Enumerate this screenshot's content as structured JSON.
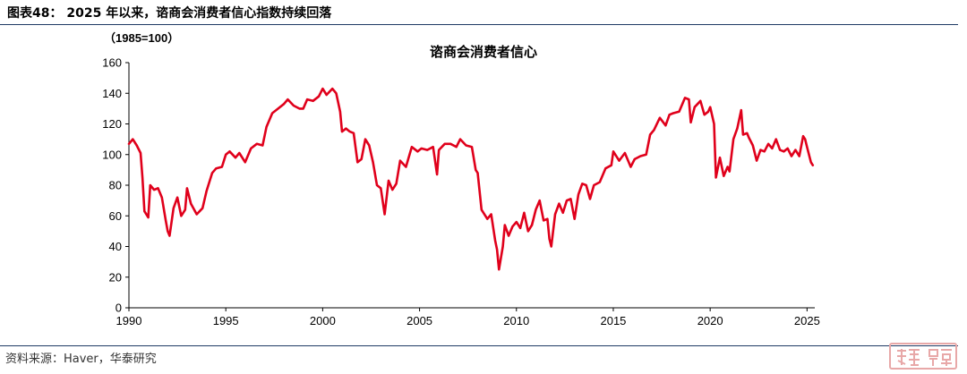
{
  "header": {
    "figure_title": "图表48：  2025 年以来，谘商会消费者信心指数持续回落"
  },
  "footer": {
    "source": "资料来源：Haver，华泰研究"
  },
  "colors": {
    "line": "#e0001b",
    "rule": "#1f3a64",
    "seal": "#e8a8a8"
  },
  "chart_data": {
    "type": "line",
    "title": "谘商会消费者信心",
    "unit_label": "（1985=100）",
    "ylim": [
      0,
      160
    ],
    "yticks": [
      0,
      20,
      40,
      60,
      80,
      100,
      120,
      140,
      160
    ],
    "xlim": [
      1990,
      2025.4
    ],
    "xticks": [
      1990,
      1995,
      2000,
      2005,
      2010,
      2015,
      2020,
      2025
    ],
    "grid": false,
    "series": [
      {
        "values": [
          [
            1990.0,
            107
          ],
          [
            1990.2,
            110
          ],
          [
            1990.4,
            106
          ],
          [
            1990.6,
            101
          ],
          [
            1990.7,
            85
          ],
          [
            1990.8,
            63
          ],
          [
            1991.0,
            59
          ],
          [
            1991.1,
            80
          ],
          [
            1991.3,
            77
          ],
          [
            1991.5,
            78
          ],
          [
            1991.7,
            72
          ],
          [
            1991.9,
            57
          ],
          [
            1992.0,
            50
          ],
          [
            1992.1,
            47
          ],
          [
            1992.3,
            65
          ],
          [
            1992.5,
            72
          ],
          [
            1992.7,
            60
          ],
          [
            1992.9,
            64
          ],
          [
            1993.0,
            78
          ],
          [
            1993.2,
            68
          ],
          [
            1993.5,
            61
          ],
          [
            1993.8,
            65
          ],
          [
            1994.0,
            76
          ],
          [
            1994.3,
            88
          ],
          [
            1994.5,
            91
          ],
          [
            1994.8,
            92
          ],
          [
            1995.0,
            100
          ],
          [
            1995.2,
            102
          ],
          [
            1995.5,
            98
          ],
          [
            1995.7,
            101
          ],
          [
            1996.0,
            95
          ],
          [
            1996.3,
            104
          ],
          [
            1996.6,
            107
          ],
          [
            1996.9,
            106
          ],
          [
            1997.1,
            118
          ],
          [
            1997.4,
            127
          ],
          [
            1997.7,
            130
          ],
          [
            1998.0,
            133
          ],
          [
            1998.2,
            136
          ],
          [
            1998.5,
            132
          ],
          [
            1998.8,
            130
          ],
          [
            1999.0,
            130
          ],
          [
            1999.2,
            136
          ],
          [
            1999.5,
            135
          ],
          [
            1999.8,
            138
          ],
          [
            2000.0,
            143
          ],
          [
            2000.2,
            139
          ],
          [
            2000.5,
            143
          ],
          [
            2000.7,
            140
          ],
          [
            2000.9,
            128
          ],
          [
            2001.0,
            115
          ],
          [
            2001.2,
            117
          ],
          [
            2001.4,
            115
          ],
          [
            2001.6,
            114
          ],
          [
            2001.8,
            95
          ],
          [
            2002.0,
            97
          ],
          [
            2002.2,
            110
          ],
          [
            2002.4,
            106
          ],
          [
            2002.6,
            95
          ],
          [
            2002.8,
            80
          ],
          [
            2003.0,
            78
          ],
          [
            2003.2,
            61
          ],
          [
            2003.4,
            83
          ],
          [
            2003.6,
            77
          ],
          [
            2003.8,
            81
          ],
          [
            2004.0,
            96
          ],
          [
            2004.3,
            92
          ],
          [
            2004.6,
            105
          ],
          [
            2004.9,
            102
          ],
          [
            2005.1,
            104
          ],
          [
            2005.4,
            103
          ],
          [
            2005.7,
            105
          ],
          [
            2005.9,
            87
          ],
          [
            2006.0,
            103
          ],
          [
            2006.3,
            107
          ],
          [
            2006.6,
            107
          ],
          [
            2006.9,
            105
          ],
          [
            2007.1,
            110
          ],
          [
            2007.4,
            106
          ],
          [
            2007.7,
            105
          ],
          [
            2007.9,
            90
          ],
          [
            2008.0,
            88
          ],
          [
            2008.2,
            64
          ],
          [
            2008.5,
            58
          ],
          [
            2008.7,
            61
          ],
          [
            2008.9,
            44
          ],
          [
            2009.0,
            38
          ],
          [
            2009.1,
            25
          ],
          [
            2009.3,
            40
          ],
          [
            2009.4,
            54
          ],
          [
            2009.6,
            47
          ],
          [
            2009.8,
            53
          ],
          [
            2010.0,
            56
          ],
          [
            2010.2,
            52
          ],
          [
            2010.4,
            62
          ],
          [
            2010.6,
            50
          ],
          [
            2010.8,
            54
          ],
          [
            2011.0,
            64
          ],
          [
            2011.2,
            70
          ],
          [
            2011.4,
            57
          ],
          [
            2011.6,
            58
          ],
          [
            2011.7,
            45
          ],
          [
            2011.8,
            40
          ],
          [
            2012.0,
            61
          ],
          [
            2012.2,
            68
          ],
          [
            2012.4,
            62
          ],
          [
            2012.6,
            70
          ],
          [
            2012.8,
            71
          ],
          [
            2013.0,
            58
          ],
          [
            2013.2,
            74
          ],
          [
            2013.4,
            81
          ],
          [
            2013.6,
            80
          ],
          [
            2013.8,
            71
          ],
          [
            2014.0,
            80
          ],
          [
            2014.3,
            82
          ],
          [
            2014.6,
            91
          ],
          [
            2014.9,
            93
          ],
          [
            2015.0,
            102
          ],
          [
            2015.3,
            96
          ],
          [
            2015.6,
            101
          ],
          [
            2015.9,
            92
          ],
          [
            2016.1,
            97
          ],
          [
            2016.4,
            99
          ],
          [
            2016.7,
            100
          ],
          [
            2016.9,
            113
          ],
          [
            2017.1,
            116
          ],
          [
            2017.4,
            124
          ],
          [
            2017.7,
            119
          ],
          [
            2017.9,
            126
          ],
          [
            2018.1,
            127
          ],
          [
            2018.4,
            128
          ],
          [
            2018.7,
            137
          ],
          [
            2018.9,
            136
          ],
          [
            2019.0,
            121
          ],
          [
            2019.2,
            131
          ],
          [
            2019.5,
            135
          ],
          [
            2019.7,
            126
          ],
          [
            2019.9,
            128
          ],
          [
            2020.0,
            131
          ],
          [
            2020.2,
            120
          ],
          [
            2020.3,
            85
          ],
          [
            2020.5,
            98
          ],
          [
            2020.7,
            86
          ],
          [
            2020.9,
            92
          ],
          [
            2021.0,
            89
          ],
          [
            2021.2,
            110
          ],
          [
            2021.4,
            117
          ],
          [
            2021.6,
            129
          ],
          [
            2021.7,
            113
          ],
          [
            2021.9,
            114
          ],
          [
            2022.0,
            111
          ],
          [
            2022.2,
            106
          ],
          [
            2022.4,
            96
          ],
          [
            2022.6,
            103
          ],
          [
            2022.8,
            102
          ],
          [
            2023.0,
            107
          ],
          [
            2023.2,
            104
          ],
          [
            2023.4,
            110
          ],
          [
            2023.6,
            103
          ],
          [
            2023.8,
            102
          ],
          [
            2024.0,
            104
          ],
          [
            2024.2,
            99
          ],
          [
            2024.4,
            103
          ],
          [
            2024.6,
            99
          ],
          [
            2024.8,
            112
          ],
          [
            2024.9,
            110
          ],
          [
            2025.0,
            105
          ],
          [
            2025.2,
            95
          ],
          [
            2025.3,
            93
          ]
        ]
      }
    ]
  }
}
